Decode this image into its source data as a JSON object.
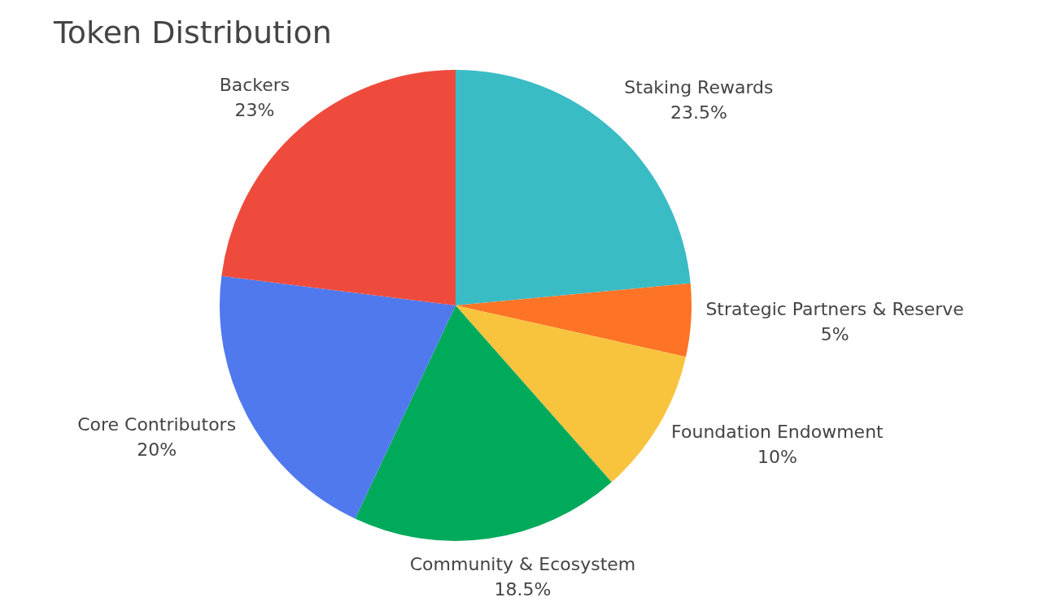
{
  "chart_data": {
    "type": "pie",
    "title": "Token Distribution",
    "categories": [
      "Staking Rewards",
      "Strategic Partners & Reserve",
      "Foundation Endowment",
      "Community & Ecosystem",
      "Core Contributors",
      "Backers"
    ],
    "values": [
      23.5,
      5,
      10,
      18.5,
      20,
      23
    ],
    "value_labels": [
      "23.5%",
      "5%",
      "10%",
      "18.5%",
      "20%",
      "23%"
    ],
    "colors": [
      "#3abcc5",
      "#fd7426",
      "#f9c43d",
      "#00aa5b",
      "#5079ee",
      "#ef4b3d"
    ]
  }
}
